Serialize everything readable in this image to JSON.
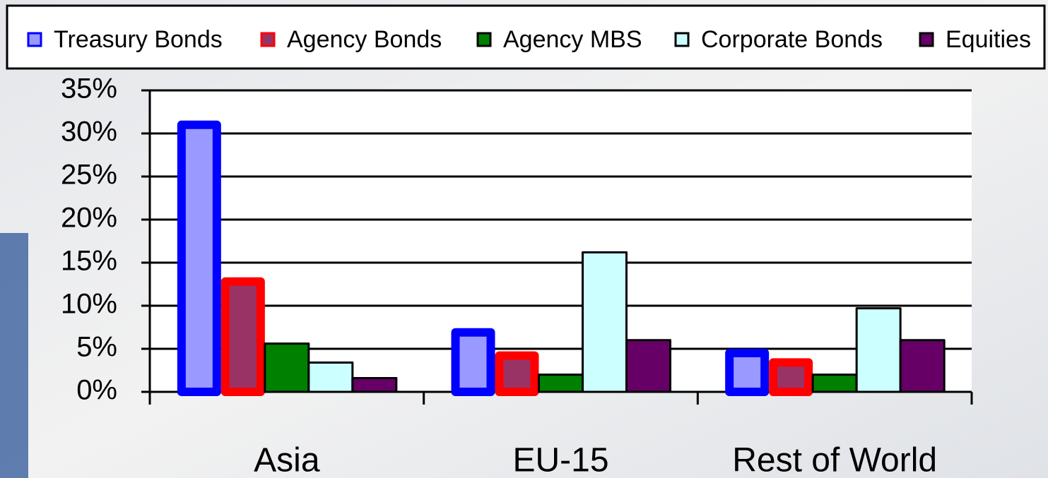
{
  "chart_data": {
    "type": "bar",
    "categories": [
      "Asia",
      "EU-15",
      "Rest of World"
    ],
    "series": [
      {
        "name": "Treasury Bonds",
        "color": "#9999ff",
        "border": "#0000ff",
        "values": [
          31.5,
          7.4,
          5
        ]
      },
      {
        "name": "Agency Bonds",
        "color": "#993366",
        "border": "#ff0000",
        "values": [
          13.3,
          4.7,
          3.9
        ]
      },
      {
        "name": "Agency MBS",
        "color": "#008000",
        "border": "#000000",
        "values": [
          5.6,
          2,
          2
        ]
      },
      {
        "name": "Corporate Bonds",
        "color": "#ccffff",
        "border": "#000000",
        "values": [
          3.4,
          16.2,
          9.7
        ]
      },
      {
        "name": "Equities",
        "color": "#660066",
        "border": "#000000",
        "values": [
          1.6,
          6,
          6
        ]
      }
    ],
    "ylim": [
      0,
      35
    ],
    "yticks": [
      {
        "value": 0,
        "label": "0%"
      },
      {
        "value": 5,
        "label": "5%"
      },
      {
        "value": 10,
        "label": "10%"
      },
      {
        "value": 15,
        "label": "15%"
      },
      {
        "value": 20,
        "label": "20%"
      },
      {
        "value": 25,
        "label": "25%"
      },
      {
        "value": 30,
        "label": "30%"
      },
      {
        "value": 35,
        "label": "35%"
      }
    ],
    "grid": true,
    "legend": "top"
  }
}
